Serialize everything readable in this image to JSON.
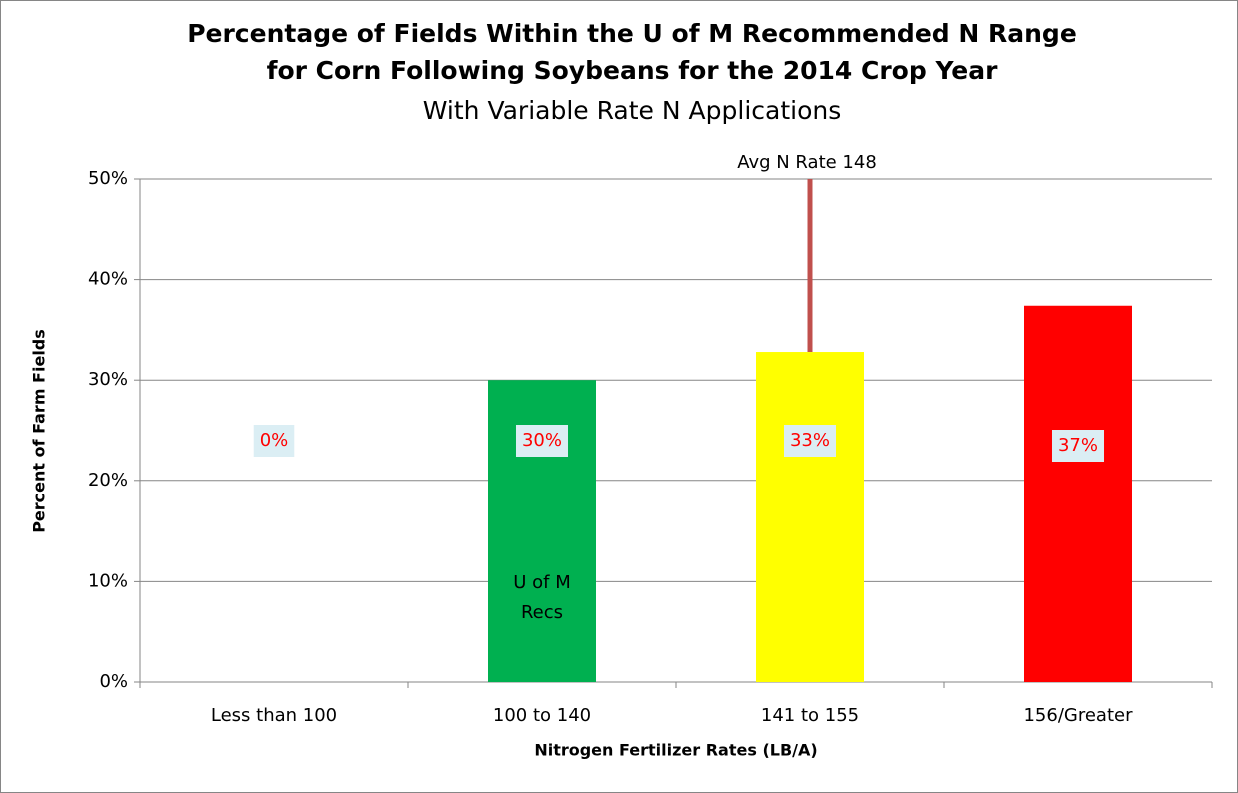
{
  "chart_data": {
    "type": "bar",
    "title": [
      "Percentage of Fields Within the U of M Recommended N Range",
      "for Corn Following Soybeans for the 2014 Crop Year"
    ],
    "subtitle": "With Variable Rate N Applications",
    "y_label": "Percent of Farm Fields",
    "x_label": "Nitrogen Fertilizer Rates (LB/A)",
    "categories": [
      "Less than 100",
      "100 to 140",
      "141 to 155",
      "156/Greater"
    ],
    "values": [
      0,
      30,
      32.8,
      37.4
    ],
    "value_labels": [
      "0%",
      "30%",
      "33%",
      "37%"
    ],
    "colors": [
      "#00b050",
      "#00b050",
      "#ffff00",
      "#ff0000"
    ],
    "ylim": [
      0,
      50
    ],
    "yticks": [
      {
        "value": 0,
        "label": "0%"
      },
      {
        "value": 10,
        "label": "10%"
      },
      {
        "value": 20,
        "label": "20%"
      },
      {
        "value": 30,
        "label": "30%"
      },
      {
        "value": 40,
        "label": "40%"
      },
      {
        "value": 50,
        "label": "50%"
      }
    ],
    "grid": true,
    "annotations": [
      {
        "text": [
          "U of M",
          "Recs"
        ],
        "category": 1
      },
      {
        "text": "Avg N Rate 148",
        "category": 2,
        "line_color": "#c0504d"
      }
    ]
  }
}
